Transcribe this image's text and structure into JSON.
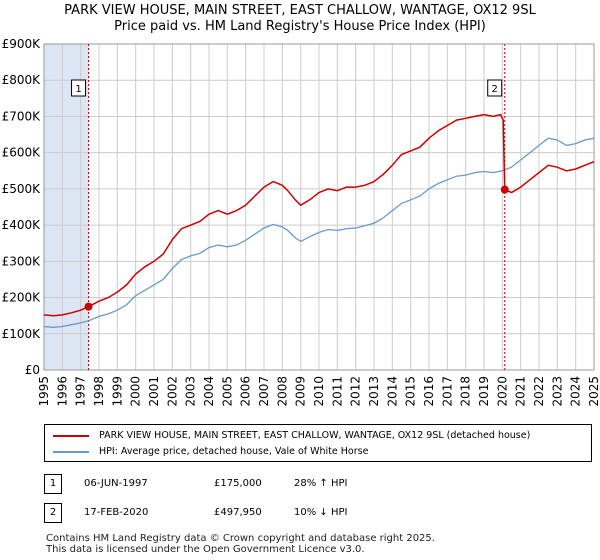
{
  "header": {
    "title_line1": "PARK VIEW HOUSE, MAIN STREET, EAST CHALLOW, WANTAGE, OX12 9SL",
    "title_line2": "Price paid vs. HM Land Registry's House Price Index (HPI)"
  },
  "colors": {
    "property": "#cc0000",
    "hpi": "#6699cc",
    "band": "#dde6f4",
    "grid": "#cccccc",
    "vline": "#cc0000"
  },
  "chart_data": {
    "type": "line",
    "title": "Price paid vs. HM Land Registry's House Price Index (HPI)",
    "xlabel": "",
    "ylabel": "",
    "xlim": [
      1995,
      2025
    ],
    "ylim": [
      0,
      900000
    ],
    "y_ticks": [
      {
        "value": 0,
        "label": "£0"
      },
      {
        "value": 100000,
        "label": "£100K"
      },
      {
        "value": 200000,
        "label": "£200K"
      },
      {
        "value": 300000,
        "label": "£300K"
      },
      {
        "value": 400000,
        "label": "£400K"
      },
      {
        "value": 500000,
        "label": "£500K"
      },
      {
        "value": 600000,
        "label": "£600K"
      },
      {
        "value": 700000,
        "label": "£700K"
      },
      {
        "value": 800000,
        "label": "£800K"
      },
      {
        "value": 900000,
        "label": "£900K"
      }
    ],
    "x_ticks": [
      "1995",
      "1996",
      "1997",
      "1998",
      "1999",
      "2000",
      "2001",
      "2002",
      "2003",
      "2004",
      "2005",
      "2006",
      "2007",
      "2008",
      "2009",
      "2010",
      "2011",
      "2012",
      "2013",
      "2014",
      "2015",
      "2016",
      "2017",
      "2018",
      "2019",
      "2020",
      "2021",
      "2022",
      "2023",
      "2024",
      "2025"
    ],
    "highlight_band": [
      1995,
      1997.43
    ],
    "series": [
      {
        "name": "PARK VIEW HOUSE, MAIN STREET, EAST CHALLOW, WANTAGE, OX12 9SL (detached house)",
        "color": "#cc0000",
        "points": [
          [
            1995,
            152000
          ],
          [
            1995.5,
            150000
          ],
          [
            1996,
            152000
          ],
          [
            1996.5,
            158000
          ],
          [
            1997,
            165000
          ],
          [
            1997.43,
            175000
          ],
          [
            1998,
            190000
          ],
          [
            1998.5,
            200000
          ],
          [
            1999,
            215000
          ],
          [
            1999.5,
            235000
          ],
          [
            2000,
            265000
          ],
          [
            2000.5,
            285000
          ],
          [
            2001,
            300000
          ],
          [
            2001.5,
            320000
          ],
          [
            2002,
            360000
          ],
          [
            2002.5,
            390000
          ],
          [
            2003,
            400000
          ],
          [
            2003.5,
            410000
          ],
          [
            2004,
            430000
          ],
          [
            2004.5,
            440000
          ],
          [
            2005,
            430000
          ],
          [
            2005.5,
            440000
          ],
          [
            2006,
            455000
          ],
          [
            2006.5,
            480000
          ],
          [
            2007,
            505000
          ],
          [
            2007.5,
            520000
          ],
          [
            2008,
            510000
          ],
          [
            2008.3,
            495000
          ],
          [
            2008.7,
            470000
          ],
          [
            2009,
            455000
          ],
          [
            2009.5,
            470000
          ],
          [
            2010,
            490000
          ],
          [
            2010.5,
            500000
          ],
          [
            2011,
            495000
          ],
          [
            2011.5,
            505000
          ],
          [
            2012,
            505000
          ],
          [
            2012.5,
            510000
          ],
          [
            2013,
            520000
          ],
          [
            2013.5,
            540000
          ],
          [
            2014,
            565000
          ],
          [
            2014.5,
            595000
          ],
          [
            2015,
            605000
          ],
          [
            2015.5,
            615000
          ],
          [
            2016,
            640000
          ],
          [
            2016.5,
            660000
          ],
          [
            2017,
            675000
          ],
          [
            2017.5,
            690000
          ],
          [
            2018,
            695000
          ],
          [
            2018.5,
            700000
          ],
          [
            2019,
            705000
          ],
          [
            2019.5,
            700000
          ],
          [
            2019.9,
            705000
          ],
          [
            2020.05,
            690000
          ],
          [
            2020.13,
            497950
          ],
          [
            2020.5,
            490000
          ],
          [
            2021,
            505000
          ],
          [
            2021.5,
            525000
          ],
          [
            2022,
            545000
          ],
          [
            2022.5,
            565000
          ],
          [
            2023,
            560000
          ],
          [
            2023.5,
            550000
          ],
          [
            2024,
            555000
          ],
          [
            2024.5,
            565000
          ],
          [
            2025,
            575000
          ]
        ]
      },
      {
        "name": "HPI: Average price, detached house, Vale of White Horse",
        "color": "#6699cc",
        "points": [
          [
            1995,
            120000
          ],
          [
            1995.5,
            118000
          ],
          [
            1996,
            120000
          ],
          [
            1996.5,
            125000
          ],
          [
            1997,
            130000
          ],
          [
            1997.43,
            136000
          ],
          [
            1998,
            148000
          ],
          [
            1998.5,
            155000
          ],
          [
            1999,
            165000
          ],
          [
            1999.5,
            180000
          ],
          [
            2000,
            205000
          ],
          [
            2000.5,
            220000
          ],
          [
            2001,
            235000
          ],
          [
            2001.5,
            250000
          ],
          [
            2002,
            280000
          ],
          [
            2002.5,
            305000
          ],
          [
            2003,
            315000
          ],
          [
            2003.5,
            322000
          ],
          [
            2004,
            338000
          ],
          [
            2004.5,
            345000
          ],
          [
            2005,
            340000
          ],
          [
            2005.5,
            345000
          ],
          [
            2006,
            358000
          ],
          [
            2006.5,
            375000
          ],
          [
            2007,
            392000
          ],
          [
            2007.5,
            402000
          ],
          [
            2008,
            395000
          ],
          [
            2008.3,
            385000
          ],
          [
            2008.7,
            365000
          ],
          [
            2009,
            355000
          ],
          [
            2009.5,
            368000
          ],
          [
            2010,
            380000
          ],
          [
            2010.5,
            388000
          ],
          [
            2011,
            385000
          ],
          [
            2011.5,
            390000
          ],
          [
            2012,
            392000
          ],
          [
            2012.5,
            398000
          ],
          [
            2013,
            405000
          ],
          [
            2013.5,
            420000
          ],
          [
            2014,
            440000
          ],
          [
            2014.5,
            460000
          ],
          [
            2015,
            470000
          ],
          [
            2015.5,
            480000
          ],
          [
            2016,
            500000
          ],
          [
            2016.5,
            515000
          ],
          [
            2017,
            525000
          ],
          [
            2017.5,
            535000
          ],
          [
            2018,
            538000
          ],
          [
            2018.5,
            545000
          ],
          [
            2019,
            548000
          ],
          [
            2019.5,
            545000
          ],
          [
            2020,
            550000
          ],
          [
            2020.5,
            560000
          ],
          [
            2021,
            580000
          ],
          [
            2021.5,
            600000
          ],
          [
            2022,
            620000
          ],
          [
            2022.5,
            640000
          ],
          [
            2023,
            635000
          ],
          [
            2023.5,
            620000
          ],
          [
            2024,
            625000
          ],
          [
            2024.5,
            635000
          ],
          [
            2025,
            640000
          ]
        ]
      }
    ],
    "annotations": [
      {
        "label": "1",
        "x": 1997.43,
        "y": 175000
      },
      {
        "label": "2",
        "x": 2020.13,
        "y": 497950
      }
    ]
  },
  "legend": {
    "property_label": "PARK VIEW HOUSE, MAIN STREET, EAST CHALLOW, WANTAGE, OX12 9SL (detached house)",
    "hpi_label": "HPI: Average price, detached house, Vale of White Horse"
  },
  "sales": [
    {
      "num": "1",
      "date": "06-JUN-1997",
      "price": "£175,000",
      "hpi": "28% ↑ HPI"
    },
    {
      "num": "2",
      "date": "17-FEB-2020",
      "price": "£497,950",
      "hpi": "10% ↓ HPI"
    }
  ],
  "footer": {
    "line1": "Contains HM Land Registry data © Crown copyright and database right 2025.",
    "line2": "This data is licensed under the Open Government Licence v3.0."
  }
}
